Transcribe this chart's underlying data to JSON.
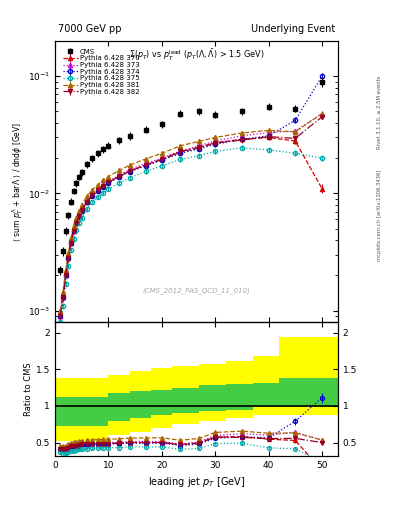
{
  "title_left": "7000 GeV pp",
  "title_right": "Underlying Event",
  "watermark": "(CMS_2012_PAS_QCD_11_010)",
  "right_label_top": "Rivet 3.1.10, ≥ 2.5M events",
  "right_label_bot": "mcplots.cern.ch [arXiv:1306.3436]",
  "ylabel_ratio": "Ratio to CMS",
  "xlabel": "leading jet p_{T} [GeV]",
  "cms_x": [
    1.0,
    1.5,
    2.0,
    2.5,
    3.0,
    3.5,
    4.0,
    4.5,
    5.0,
    6.0,
    7.0,
    8.0,
    9.0,
    10.0,
    12.0,
    14.0,
    17.0,
    20.0,
    23.5,
    27.0,
    30.0,
    35.0,
    40.0,
    45.0,
    50.0
  ],
  "cms_y": [
    0.0022,
    0.0032,
    0.0048,
    0.0065,
    0.0085,
    0.0105,
    0.0122,
    0.0138,
    0.0152,
    0.0178,
    0.02,
    0.022,
    0.0238,
    0.0255,
    0.0285,
    0.031,
    0.035,
    0.039,
    0.048,
    0.05,
    0.047,
    0.05,
    0.055,
    0.053,
    0.09
  ],
  "cms_yerr": [
    0.0002,
    0.0003,
    0.0004,
    0.0005,
    0.0006,
    0.0007,
    0.0008,
    0.0009,
    0.001,
    0.0012,
    0.0014,
    0.0016,
    0.0017,
    0.0018,
    0.002,
    0.0022,
    0.0025,
    0.0028,
    0.0034,
    0.0035,
    0.0033,
    0.0035,
    0.0039,
    0.0037,
    0.009
  ],
  "series": [
    {
      "label": "Pythia 6.428 370",
      "color": "#cc0000",
      "linestyle": "--",
      "marker": "^",
      "fillstyle": "none",
      "x": [
        1.0,
        1.5,
        2.0,
        2.5,
        3.0,
        3.5,
        4.0,
        4.5,
        5.0,
        6.0,
        7.0,
        8.0,
        9.0,
        10.0,
        12.0,
        14.0,
        17.0,
        20.0,
        23.5,
        27.0,
        30.0,
        35.0,
        40.0,
        45.0,
        50.0
      ],
      "y": [
        0.0009,
        0.0013,
        0.002,
        0.0028,
        0.0038,
        0.0048,
        0.0056,
        0.0064,
        0.0072,
        0.0085,
        0.0096,
        0.0106,
        0.0115,
        0.0124,
        0.014,
        0.0155,
        0.0175,
        0.0195,
        0.0225,
        0.0245,
        0.027,
        0.029,
        0.03,
        0.028,
        0.011
      ],
      "yerr": [
        5e-05,
        7e-05,
        0.0001,
        0.00012,
        0.00015,
        0.0002,
        0.00023,
        0.00026,
        0.0003,
        0.00035,
        0.0004,
        0.00045,
        0.0005,
        0.00055,
        0.0006,
        0.0007,
        0.0008,
        0.0009,
        0.0011,
        0.0012,
        0.0014,
        0.0015,
        0.0016,
        0.0015,
        0.001
      ]
    },
    {
      "label": "Pythia 6.428 373",
      "color": "#cc00cc",
      "linestyle": ":",
      "marker": "^",
      "fillstyle": "none",
      "x": [
        1.0,
        1.5,
        2.0,
        2.5,
        3.0,
        3.5,
        4.0,
        4.5,
        5.0,
        6.0,
        7.0,
        8.0,
        9.0,
        10.0,
        12.0,
        14.0,
        17.0,
        20.0,
        23.5,
        27.0,
        30.0,
        35.0,
        40.0,
        45.0,
        50.0
      ],
      "y": [
        0.0009,
        0.0013,
        0.002,
        0.0029,
        0.0039,
        0.0049,
        0.0057,
        0.0065,
        0.0073,
        0.0086,
        0.0098,
        0.0108,
        0.0118,
        0.0127,
        0.0143,
        0.016,
        0.018,
        0.02,
        0.023,
        0.0255,
        0.028,
        0.031,
        0.033,
        0.034,
        0.048
      ],
      "yerr": [
        5e-05,
        7e-05,
        0.0001,
        0.00012,
        0.00015,
        0.0002,
        0.00023,
        0.00026,
        0.0003,
        0.00035,
        0.0004,
        0.00045,
        0.0005,
        0.00055,
        0.0006,
        0.0007,
        0.0008,
        0.0009,
        0.0011,
        0.0012,
        0.0014,
        0.0015,
        0.0016,
        0.0017,
        0.0025
      ]
    },
    {
      "label": "Pythia 6.428 374",
      "color": "#0000cc",
      "linestyle": ":",
      "marker": "o",
      "fillstyle": "none",
      "x": [
        1.0,
        1.5,
        2.0,
        2.5,
        3.0,
        3.5,
        4.0,
        4.5,
        5.0,
        6.0,
        7.0,
        8.0,
        9.0,
        10.0,
        12.0,
        14.0,
        17.0,
        20.0,
        23.5,
        27.0,
        30.0,
        35.0,
        40.0,
        45.0,
        50.0
      ],
      "y": [
        0.0009,
        0.0013,
        0.002,
        0.0028,
        0.0038,
        0.0048,
        0.0056,
        0.0063,
        0.0071,
        0.0084,
        0.0095,
        0.0105,
        0.0114,
        0.0122,
        0.0138,
        0.0153,
        0.0172,
        0.0192,
        0.022,
        0.024,
        0.0262,
        0.029,
        0.031,
        0.042,
        0.1
      ],
      "yerr": [
        5e-05,
        7e-05,
        0.0001,
        0.00012,
        0.00015,
        0.0002,
        0.00023,
        0.00026,
        0.0003,
        0.00035,
        0.0004,
        0.00045,
        0.0005,
        0.00055,
        0.0006,
        0.0007,
        0.0008,
        0.0009,
        0.0011,
        0.0012,
        0.0014,
        0.0015,
        0.0016,
        0.0025,
        0.006
      ]
    },
    {
      "label": "Pythia 6.428 375",
      "color": "#00aaaa",
      "linestyle": ":",
      "marker": "o",
      "fillstyle": "none",
      "x": [
        1.0,
        1.5,
        2.0,
        2.5,
        3.0,
        3.5,
        4.0,
        4.5,
        5.0,
        6.0,
        7.0,
        8.0,
        9.0,
        10.0,
        12.0,
        14.0,
        17.0,
        20.0,
        23.5,
        27.0,
        30.0,
        35.0,
        40.0,
        45.0,
        50.0
      ],
      "y": [
        0.0008,
        0.0011,
        0.0017,
        0.0024,
        0.0033,
        0.0041,
        0.0049,
        0.0056,
        0.0062,
        0.0074,
        0.0084,
        0.0093,
        0.0101,
        0.0109,
        0.0123,
        0.0136,
        0.0154,
        0.0172,
        0.0195,
        0.021,
        0.0228,
        0.0245,
        0.0235,
        0.022,
        0.02
      ],
      "yerr": [
        5e-05,
        6e-05,
        9e-05,
        0.00011,
        0.00014,
        0.00017,
        0.0002,
        0.00023,
        0.00026,
        0.0003,
        0.00035,
        0.0004,
        0.00045,
        0.0005,
        0.00055,
        0.0006,
        0.0007,
        0.0008,
        0.0009,
        0.001,
        0.0011,
        0.0012,
        0.0011,
        0.0011,
        0.001
      ]
    },
    {
      "label": "Pythia 6.428 381",
      "color": "#aa6600",
      "linestyle": "--",
      "marker": "^",
      "fillstyle": "full",
      "x": [
        1.0,
        1.5,
        2.0,
        2.5,
        3.0,
        3.5,
        4.0,
        4.5,
        5.0,
        6.0,
        7.0,
        8.0,
        9.0,
        10.0,
        12.0,
        14.0,
        17.0,
        20.0,
        23.5,
        27.0,
        30.0,
        35.0,
        40.0,
        45.0,
        50.0
      ],
      "y": [
        0.001,
        0.00145,
        0.0022,
        0.0031,
        0.0042,
        0.0053,
        0.0062,
        0.0071,
        0.008,
        0.0095,
        0.0107,
        0.0119,
        0.0129,
        0.0139,
        0.0157,
        0.0174,
        0.0197,
        0.022,
        0.0255,
        0.0278,
        0.03,
        0.0328,
        0.0345,
        0.0335,
        0.048
      ],
      "yerr": [
        5e-05,
        7e-05,
        0.0001,
        0.00012,
        0.00015,
        0.0002,
        0.00023,
        0.00026,
        0.0003,
        0.00035,
        0.0004,
        0.00045,
        0.0005,
        0.00055,
        0.0006,
        0.0007,
        0.0008,
        0.0009,
        0.0011,
        0.0012,
        0.0014,
        0.0015,
        0.0016,
        0.0015,
        0.0022
      ]
    },
    {
      "label": "Pythia 6.428 382",
      "color": "#990022",
      "linestyle": "-.",
      "marker": "v",
      "fillstyle": "full",
      "x": [
        1.0,
        1.5,
        2.0,
        2.5,
        3.0,
        3.5,
        4.0,
        4.5,
        5.0,
        6.0,
        7.0,
        8.0,
        9.0,
        10.0,
        12.0,
        14.0,
        17.0,
        20.0,
        23.5,
        27.0,
        30.0,
        35.0,
        40.0,
        45.0,
        50.0
      ],
      "y": [
        0.0009,
        0.0013,
        0.002,
        0.0028,
        0.0038,
        0.0048,
        0.0056,
        0.0064,
        0.0072,
        0.0085,
        0.0096,
        0.0106,
        0.0115,
        0.0124,
        0.014,
        0.0155,
        0.0175,
        0.0195,
        0.0228,
        0.0248,
        0.027,
        0.0285,
        0.0305,
        0.0295,
        0.045
      ],
      "yerr": [
        5e-05,
        7e-05,
        0.0001,
        0.00012,
        0.00015,
        0.0002,
        0.00023,
        0.00026,
        0.0003,
        0.00035,
        0.0004,
        0.00045,
        0.0005,
        0.00055,
        0.0006,
        0.0007,
        0.0008,
        0.0009,
        0.0011,
        0.0012,
        0.0014,
        0.0015,
        0.0016,
        0.0015,
        0.0022
      ]
    }
  ],
  "ratio_band_x": [
    0,
    6,
    10,
    14,
    18,
    22,
    27,
    32,
    37,
    42,
    55
  ],
  "ratio_band_green_low": [
    0.72,
    0.72,
    0.8,
    0.84,
    0.87,
    0.9,
    0.93,
    0.95,
    0.98,
    0.98,
    0.98
  ],
  "ratio_band_green_high": [
    1.12,
    1.12,
    1.18,
    1.2,
    1.22,
    1.25,
    1.28,
    1.3,
    1.32,
    1.38,
    1.38
  ],
  "ratio_band_yellow_low": [
    0.52,
    0.52,
    0.6,
    0.65,
    0.7,
    0.75,
    0.8,
    0.83,
    0.88,
    0.88,
    0.88
  ],
  "ratio_band_yellow_high": [
    1.38,
    1.38,
    1.42,
    1.48,
    1.52,
    1.55,
    1.58,
    1.62,
    1.68,
    1.95,
    1.95
  ],
  "xlim": [
    0,
    53
  ],
  "ylim_main": [
    0.0008,
    0.2
  ],
  "ylim_ratio": [
    0.32,
    2.15
  ],
  "ratio_yticks": [
    0.5,
    1.0,
    1.5,
    2.0
  ],
  "ratio_yticklabels": [
    "0.5",
    "1",
    "1.5",
    "2"
  ]
}
